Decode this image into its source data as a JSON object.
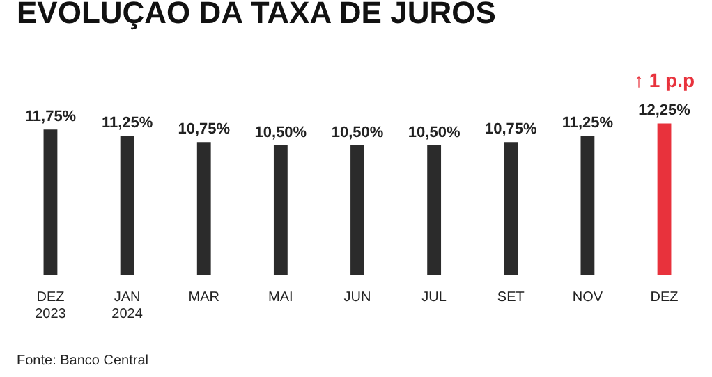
{
  "chart_data": {
    "type": "bar",
    "title": "EVOLUÇAO DA TAXA DE JUROS",
    "categories": [
      "DEZ\n2023",
      "JAN\n2024",
      "MAR",
      "MAI",
      "JUN",
      "JUL",
      "SET",
      "NOV",
      "DEZ"
    ],
    "values": [
      11.75,
      11.25,
      10.75,
      10.5,
      10.5,
      10.5,
      10.75,
      11.25,
      12.25
    ],
    "colors": [
      "#2b2b2b",
      "#2b2b2b",
      "#2b2b2b",
      "#2b2b2b",
      "#2b2b2b",
      "#2b2b2b",
      "#2b2b2b",
      "#2b2b2b",
      "#e8323c"
    ],
    "value_labels": [
      "11,75%",
      "11,25%",
      "10,75%",
      "10,50%",
      "10,50%",
      "10,50%",
      "10,75%",
      "11,25%",
      "12,25%"
    ],
    "annotations": [
      {
        "text": "↑ 1 p.p",
        "x": "DEZ",
        "y": 12.25
      },
      "Fonte: Banco Central"
    ]
  }
}
